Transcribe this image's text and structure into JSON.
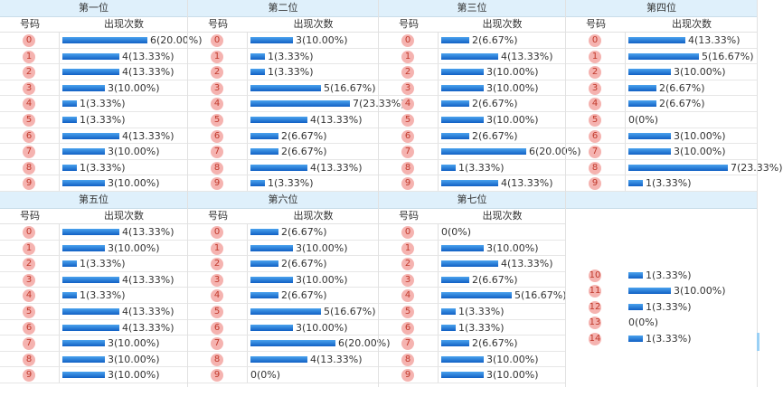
{
  "header_number": "号码",
  "header_count": "出现次数",
  "positions": [
    {
      "title": "第一位",
      "rows": [
        {
          "ball": "0",
          "count": "6(20.00%)",
          "ratio": 0.2
        },
        {
          "ball": "1",
          "count": "4(13.33%)",
          "ratio": 0.1333
        },
        {
          "ball": "2",
          "count": "4(13.33%)",
          "ratio": 0.1333
        },
        {
          "ball": "3",
          "count": "3(10.00%)",
          "ratio": 0.1
        },
        {
          "ball": "4",
          "count": "1(3.33%)",
          "ratio": 0.0333
        },
        {
          "ball": "5",
          "count": "1(3.33%)",
          "ratio": 0.0333
        },
        {
          "ball": "6",
          "count": "4(13.33%)",
          "ratio": 0.1333
        },
        {
          "ball": "7",
          "count": "3(10.00%)",
          "ratio": 0.1
        },
        {
          "ball": "8",
          "count": "1(3.33%)",
          "ratio": 0.0333
        },
        {
          "ball": "9",
          "count": "3(10.00%)",
          "ratio": 0.1
        }
      ]
    },
    {
      "title": "第二位",
      "rows": [
        {
          "ball": "0",
          "count": "3(10.00%)",
          "ratio": 0.1
        },
        {
          "ball": "1",
          "count": "1(3.33%)",
          "ratio": 0.0333
        },
        {
          "ball": "2",
          "count": "1(3.33%)",
          "ratio": 0.0333
        },
        {
          "ball": "3",
          "count": "5(16.67%)",
          "ratio": 0.1667
        },
        {
          "ball": "4",
          "count": "7(23.33%)",
          "ratio": 0.2333
        },
        {
          "ball": "5",
          "count": "4(13.33%)",
          "ratio": 0.1333
        },
        {
          "ball": "6",
          "count": "2(6.67%)",
          "ratio": 0.0667
        },
        {
          "ball": "7",
          "count": "2(6.67%)",
          "ratio": 0.0667
        },
        {
          "ball": "8",
          "count": "4(13.33%)",
          "ratio": 0.1333
        },
        {
          "ball": "9",
          "count": "1(3.33%)",
          "ratio": 0.0333
        }
      ]
    },
    {
      "title": "第三位",
      "rows": [
        {
          "ball": "0",
          "count": "2(6.67%)",
          "ratio": 0.0667
        },
        {
          "ball": "1",
          "count": "4(13.33%)",
          "ratio": 0.1333
        },
        {
          "ball": "2",
          "count": "3(10.00%)",
          "ratio": 0.1
        },
        {
          "ball": "3",
          "count": "3(10.00%)",
          "ratio": 0.1
        },
        {
          "ball": "4",
          "count": "2(6.67%)",
          "ratio": 0.0667
        },
        {
          "ball": "5",
          "count": "3(10.00%)",
          "ratio": 0.1
        },
        {
          "ball": "6",
          "count": "2(6.67%)",
          "ratio": 0.0667
        },
        {
          "ball": "7",
          "count": "6(20.00%)",
          "ratio": 0.2
        },
        {
          "ball": "8",
          "count": "1(3.33%)",
          "ratio": 0.0333
        },
        {
          "ball": "9",
          "count": "4(13.33%)",
          "ratio": 0.1333
        }
      ]
    },
    {
      "title": "第四位",
      "rows": [
        {
          "ball": "0",
          "count": "4(13.33%)",
          "ratio": 0.1333
        },
        {
          "ball": "1",
          "count": "5(16.67%)",
          "ratio": 0.1667
        },
        {
          "ball": "2",
          "count": "3(10.00%)",
          "ratio": 0.1
        },
        {
          "ball": "3",
          "count": "2(6.67%)",
          "ratio": 0.0667
        },
        {
          "ball": "4",
          "count": "2(6.67%)",
          "ratio": 0.0667
        },
        {
          "ball": "5",
          "count": "0(0%)",
          "ratio": 0
        },
        {
          "ball": "6",
          "count": "3(10.00%)",
          "ratio": 0.1
        },
        {
          "ball": "7",
          "count": "3(10.00%)",
          "ratio": 0.1
        },
        {
          "ball": "8",
          "count": "7(23.33%)",
          "ratio": 0.2333
        },
        {
          "ball": "9",
          "count": "1(3.33%)",
          "ratio": 0.0333
        }
      ]
    },
    {
      "title": "第五位",
      "rows": [
        {
          "ball": "0",
          "count": "4(13.33%)",
          "ratio": 0.1333
        },
        {
          "ball": "1",
          "count": "3(10.00%)",
          "ratio": 0.1
        },
        {
          "ball": "2",
          "count": "1(3.33%)",
          "ratio": 0.0333
        },
        {
          "ball": "3",
          "count": "4(13.33%)",
          "ratio": 0.1333
        },
        {
          "ball": "4",
          "count": "1(3.33%)",
          "ratio": 0.0333
        },
        {
          "ball": "5",
          "count": "4(13.33%)",
          "ratio": 0.1333
        },
        {
          "ball": "6",
          "count": "4(13.33%)",
          "ratio": 0.1333
        },
        {
          "ball": "7",
          "count": "3(10.00%)",
          "ratio": 0.1
        },
        {
          "ball": "8",
          "count": "3(10.00%)",
          "ratio": 0.1
        },
        {
          "ball": "9",
          "count": "3(10.00%)",
          "ratio": 0.1
        }
      ]
    },
    {
      "title": "第六位",
      "rows": [
        {
          "ball": "0",
          "count": "2(6.67%)",
          "ratio": 0.0667
        },
        {
          "ball": "1",
          "count": "3(10.00%)",
          "ratio": 0.1
        },
        {
          "ball": "2",
          "count": "2(6.67%)",
          "ratio": 0.0667
        },
        {
          "ball": "3",
          "count": "3(10.00%)",
          "ratio": 0.1
        },
        {
          "ball": "4",
          "count": "2(6.67%)",
          "ratio": 0.0667
        },
        {
          "ball": "5",
          "count": "5(16.67%)",
          "ratio": 0.1667
        },
        {
          "ball": "6",
          "count": "3(10.00%)",
          "ratio": 0.1
        },
        {
          "ball": "7",
          "count": "6(20.00%)",
          "ratio": 0.2
        },
        {
          "ball": "8",
          "count": "4(13.33%)",
          "ratio": 0.1333
        },
        {
          "ball": "9",
          "count": "0(0%)",
          "ratio": 0
        }
      ]
    },
    {
      "title": "第七位",
      "rows": [
        {
          "ball": "0",
          "count": "0(0%)",
          "ratio": 0
        },
        {
          "ball": "1",
          "count": "3(10.00%)",
          "ratio": 0.1
        },
        {
          "ball": "2",
          "count": "4(13.33%)",
          "ratio": 0.1333
        },
        {
          "ball": "3",
          "count": "2(6.67%)",
          "ratio": 0.0667
        },
        {
          "ball": "4",
          "count": "5(16.67%)",
          "ratio": 0.1667
        },
        {
          "ball": "5",
          "count": "1(3.33%)",
          "ratio": 0.0333
        },
        {
          "ball": "6",
          "count": "1(3.33%)",
          "ratio": 0.0333
        },
        {
          "ball": "7",
          "count": "2(6.67%)",
          "ratio": 0.0667
        },
        {
          "ball": "8",
          "count": "3(10.00%)",
          "ratio": 0.1
        },
        {
          "ball": "9",
          "count": "3(10.00%)",
          "ratio": 0.1
        }
      ]
    },
    {
      "title": "",
      "rows": [
        {
          "ball": "10",
          "count": "1(3.33%)",
          "ratio": 0.0333
        },
        {
          "ball": "11",
          "count": "3(10.00%)",
          "ratio": 0.1
        },
        {
          "ball": "12",
          "count": "1(3.33%)",
          "ratio": 0.0333
        },
        {
          "ball": "13",
          "count": "0(0%)",
          "ratio": 0
        },
        {
          "ball": "14",
          "count": "1(3.33%)",
          "ratio": 0.0333
        }
      ]
    }
  ],
  "colors": {
    "ball_bg": "#f5b3b0",
    "ball_text": "#c0392b",
    "bar": "#1e78d8",
    "title_bg": "#dff0fb"
  }
}
